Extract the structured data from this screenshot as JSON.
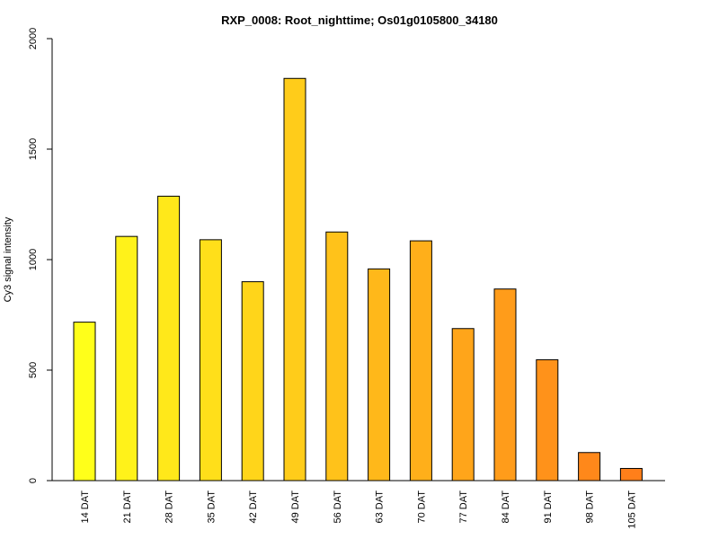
{
  "chart_data": {
    "type": "bar",
    "title": "RXP_0008: Root_nighttime; Os01g0105800_34180",
    "xlabel": "",
    "ylabel": "Cy3  signal intensity",
    "ylim": [
      0,
      2000
    ],
    "yticks": [
      0,
      500,
      1000,
      1500,
      2000
    ],
    "grid": false,
    "categories": [
      "14 DAT",
      "21 DAT",
      "28 DAT",
      "35 DAT",
      "42 DAT",
      "49 DAT",
      "56 DAT",
      "63 DAT",
      "70 DAT",
      "77 DAT",
      "84 DAT",
      "91 DAT",
      "98 DAT",
      "105 DAT"
    ],
    "values": [
      717,
      1105,
      1287,
      1090,
      900,
      1820,
      1125,
      958,
      1085,
      688,
      867,
      547,
      127,
      55
    ],
    "colors": [
      "#FFFF1A",
      "#FFF21A",
      "#FFE81A",
      "#FFDF1A",
      "#FFD51A",
      "#FFCC1A",
      "#FFC21A",
      "#FFB81A",
      "#FFAF1A",
      "#FFA51A",
      "#FF9C1A",
      "#FF921A",
      "#FF881A",
      "#FF7F1A"
    ]
  }
}
